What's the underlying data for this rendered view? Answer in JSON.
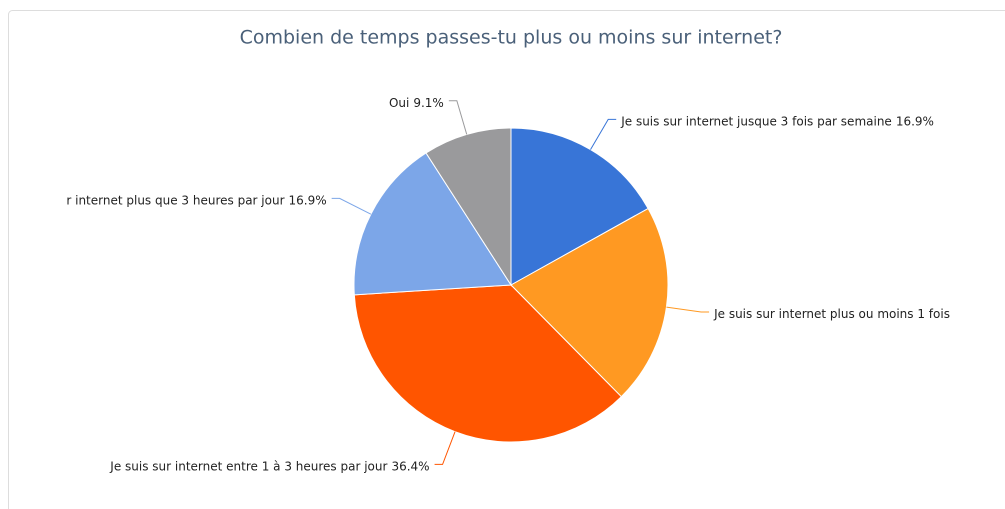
{
  "chart_data": {
    "type": "pie",
    "title": "Combien de temps passes-tu plus ou moins sur internet?",
    "categories": [
      "Je suis sur internet jusque 3 fois par semaine",
      "Je suis sur internet plus ou moins 1 fois",
      "Je suis sur internet entre 1 à 3 heures par jour",
      "r internet plus que 3 heures par jour",
      "Oui"
    ],
    "values": [
      16.9,
      20.7,
      36.4,
      16.9,
      9.1
    ],
    "value_labels": [
      "16.9%",
      null,
      "36.4%",
      "16.9%",
      "9.1%"
    ],
    "colors": [
      "#3875d7",
      "#ff9922",
      "#ff5500",
      "#7ca6e8",
      "#9a9a9c"
    ]
  }
}
